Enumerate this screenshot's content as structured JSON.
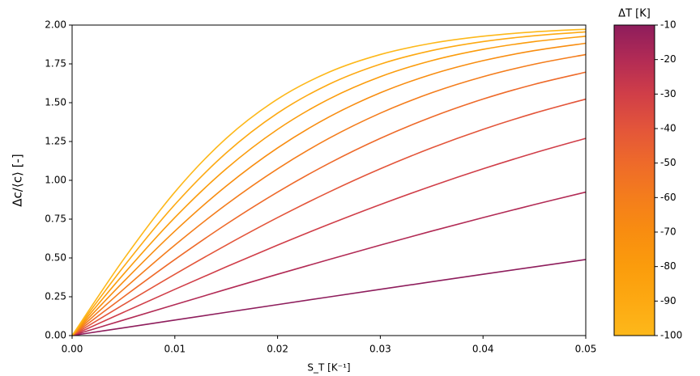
{
  "chart_data": {
    "type": "line",
    "xlabel": "S_T [K⁻¹]",
    "ylabel": "Δc/⟨c⟩ [-]",
    "x": [
      0,
      0.005,
      0.01,
      0.015,
      0.02,
      0.025,
      0.03,
      0.035,
      0.04,
      0.045,
      0.05
    ],
    "xlim": [
      0,
      0.05
    ],
    "xticks": [
      {
        "value": 0,
        "label": "0.00"
      },
      0.01,
      0.02,
      0.03,
      0.04,
      0.05
    ],
    "ylim": [
      0,
      2
    ],
    "yticks": [
      {
        "value": 0,
        "label": "0.00"
      },
      0.25,
      {
        "value": 0.5,
        "label": "0.50"
      },
      0.75,
      {
        "value": 1,
        "label": "1.00"
      },
      1.25,
      {
        "value": 1.5,
        "label": "1.50"
      },
      1.75,
      {
        "value": 2,
        "label": "2.00"
      }
    ],
    "series": [
      {
        "color": "#8e1d5c",
        "values": [
          0,
          0.05,
          0.0999,
          0.1497,
          0.1993,
          0.2487,
          0.2978,
          0.3465,
          0.3948,
          0.4425,
          0.4898
        ]
      },
      {
        "color": "#b22b55",
        "values": [
          0,
          0.0999,
          0.1993,
          0.2978,
          0.3948,
          0.4898,
          0.5826,
          0.6728,
          0.7599,
          0.8438,
          0.9242
        ]
      },
      {
        "color": "#d03e48",
        "values": [
          0,
          0.1497,
          0.2978,
          0.4425,
          0.5826,
          0.7167,
          0.8438,
          0.9631,
          1.0741,
          1.1765,
          1.2703
        ]
      },
      {
        "color": "#e3553a",
        "values": [
          0,
          0.1993,
          0.3948,
          0.5826,
          0.7599,
          0.9242,
          1.0741,
          1.2087,
          1.3281,
          1.4326,
          1.5232
        ]
      },
      {
        "color": "#ee6a2a",
        "values": [
          0,
          0.2487,
          0.4898,
          0.7167,
          0.9242,
          1.1092,
          1.2703,
          1.4078,
          1.5232,
          1.6186,
          1.6966
        ]
      },
      {
        "color": "#f47d1c",
        "values": [
          0,
          0.2978,
          0.5826,
          0.8438,
          1.0741,
          1.2703,
          1.4326,
          1.5636,
          1.6673,
          1.7481,
          1.8103
        ]
      },
      {
        "color": "#f88d10",
        "values": [
          0,
          0.3465,
          0.6728,
          0.9631,
          1.2087,
          1.4078,
          1.5636,
          1.6822,
          1.7707,
          1.8356,
          1.8828
        ]
      },
      {
        "color": "#fb9c0c",
        "values": [
          0,
          0.3948,
          0.7599,
          1.0741,
          1.3281,
          1.5232,
          1.6673,
          1.7707,
          1.8433,
          1.8936,
          1.9281
        ]
      },
      {
        "color": "#fda912",
        "values": [
          0,
          0.4425,
          0.8438,
          1.1765,
          1.4326,
          1.6186,
          1.7481,
          1.8356,
          1.8936,
          1.9315,
          1.9561
        ]
      },
      {
        "color": "#fdb81a",
        "values": [
          0,
          0.4898,
          0.9242,
          1.2703,
          1.5232,
          1.6966,
          1.8103,
          1.8828,
          1.9281,
          1.9561,
          1.9732
        ]
      }
    ],
    "colorbar": {
      "label": "ΔT [K]",
      "lim": [
        -100,
        -10
      ],
      "ticks": [
        -10,
        -20,
        -30,
        -40,
        -50,
        -60,
        -70,
        -80,
        -90,
        -100
      ]
    }
  }
}
